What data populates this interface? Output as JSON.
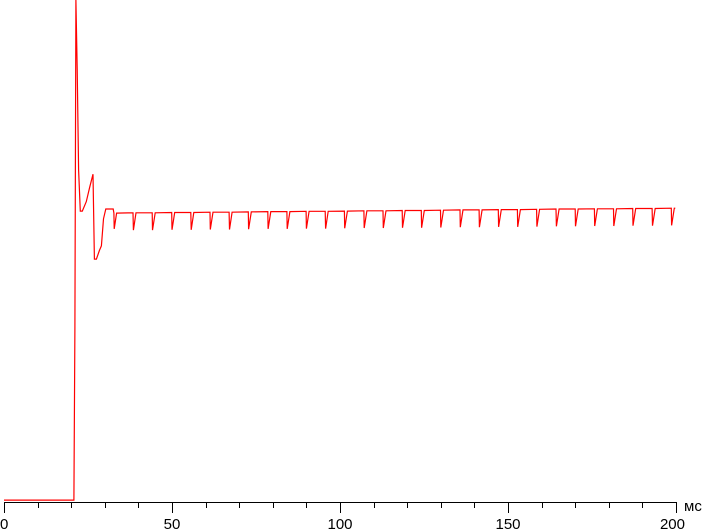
{
  "chart_data": {
    "type": "line",
    "title": "",
    "xlabel": "",
    "ylabel": "",
    "x_unit": "мс",
    "xlim": [
      0,
      200
    ],
    "ylim": [
      0,
      174
    ],
    "x_ticks": [
      "0",
      "50",
      "100",
      "150",
      "200"
    ],
    "x_minor_step": 10,
    "grid": false,
    "line_color": "#ff0000",
    "axis_color": "#000000",
    "series": [
      {
        "points": [
          [
            0,
            0.3
          ],
          [
            20.8,
            0.3
          ],
          [
            21.1,
            60
          ],
          [
            21.4,
            174
          ],
          [
            21.8,
            150
          ],
          [
            22.2,
            115
          ],
          [
            22.7,
            100.7
          ],
          [
            23.3,
            100.7
          ],
          [
            24.5,
            104
          ],
          [
            25.5,
            109
          ],
          [
            26.5,
            113.5
          ],
          [
            26.9,
            84
          ],
          [
            27.5,
            84
          ],
          [
            28.4,
            87
          ],
          [
            29.0,
            88.6
          ],
          [
            29.6,
            98
          ],
          [
            30.3,
            101.4
          ],
          [
            32.5,
            101.4
          ],
          [
            32.7,
            100.0
          ],
          [
            32.8,
            94.5
          ],
          [
            33.5,
            100.0
          ],
          [
            38.4,
            100.1
          ],
          [
            38.5,
            94.1
          ],
          [
            39.3,
            100.1
          ],
          [
            44.1,
            100.1
          ],
          [
            44.2,
            94.1
          ],
          [
            45.0,
            100.1
          ],
          [
            49.9,
            100.2
          ],
          [
            50.0,
            94.2
          ],
          [
            50.8,
            100.2
          ],
          [
            55.6,
            100.2
          ],
          [
            55.7,
            94.2
          ],
          [
            56.5,
            100.2
          ],
          [
            61.3,
            100.3
          ],
          [
            61.4,
            94.3
          ],
          [
            62.2,
            100.3
          ],
          [
            67.0,
            100.3
          ],
          [
            67.1,
            94.3
          ],
          [
            67.9,
            100.3
          ],
          [
            72.7,
            100.4
          ],
          [
            72.8,
            94.4
          ],
          [
            73.6,
            100.4
          ],
          [
            78.5,
            100.5
          ],
          [
            78.6,
            94.5
          ],
          [
            79.4,
            100.5
          ],
          [
            84.2,
            100.5
          ],
          [
            84.3,
            94.5
          ],
          [
            85.1,
            100.5
          ],
          [
            89.9,
            100.6
          ],
          [
            90.0,
            94.6
          ],
          [
            90.8,
            100.6
          ],
          [
            95.6,
            100.6
          ],
          [
            95.7,
            94.6
          ],
          [
            96.5,
            100.6
          ],
          [
            101.3,
            100.7
          ],
          [
            101.4,
            94.7
          ],
          [
            102.2,
            100.7
          ],
          [
            107.1,
            100.8
          ],
          [
            107.2,
            94.8
          ],
          [
            108.0,
            100.8
          ],
          [
            112.8,
            100.8
          ],
          [
            112.9,
            94.8
          ],
          [
            113.7,
            100.8
          ],
          [
            118.5,
            100.9
          ],
          [
            118.6,
            94.9
          ],
          [
            119.4,
            100.9
          ],
          [
            124.2,
            100.9
          ],
          [
            124.3,
            94.9
          ],
          [
            125.1,
            100.9
          ],
          [
            129.9,
            101.0
          ],
          [
            130.0,
            95.0
          ],
          [
            130.8,
            101.0
          ],
          [
            135.7,
            101.1
          ],
          [
            135.8,
            95.1
          ],
          [
            136.6,
            101.1
          ],
          [
            141.4,
            101.1
          ],
          [
            141.5,
            95.1
          ],
          [
            142.3,
            101.1
          ],
          [
            147.1,
            101.2
          ],
          [
            147.2,
            95.2
          ],
          [
            148.0,
            101.2
          ],
          [
            152.8,
            101.2
          ],
          [
            152.9,
            95.2
          ],
          [
            153.7,
            101.2
          ],
          [
            158.5,
            101.3
          ],
          [
            158.6,
            95.3
          ],
          [
            159.4,
            101.3
          ],
          [
            164.3,
            101.4
          ],
          [
            164.4,
            95.4
          ],
          [
            165.2,
            101.4
          ],
          [
            170.0,
            101.4
          ],
          [
            170.1,
            95.4
          ],
          [
            170.9,
            101.4
          ],
          [
            175.7,
            101.5
          ],
          [
            175.8,
            95.5
          ],
          [
            176.6,
            101.5
          ],
          [
            181.4,
            101.5
          ],
          [
            181.5,
            95.5
          ],
          [
            182.3,
            101.5
          ],
          [
            187.1,
            101.6
          ],
          [
            187.2,
            95.6
          ],
          [
            188.0,
            101.6
          ],
          [
            192.9,
            101.6
          ],
          [
            193.0,
            95.6
          ],
          [
            193.8,
            101.6
          ],
          [
            198.6,
            101.7
          ],
          [
            198.7,
            95.7
          ],
          [
            199.5,
            101.7
          ],
          [
            199.8,
            101.7
          ]
        ]
      }
    ]
  }
}
